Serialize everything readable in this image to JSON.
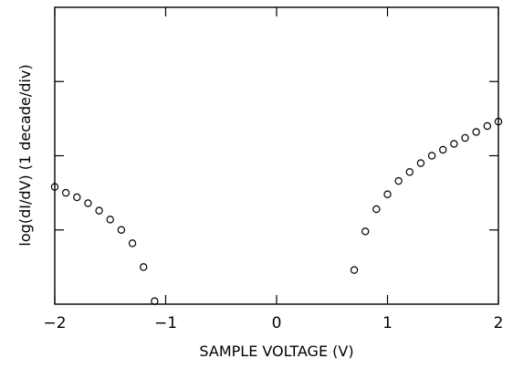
{
  "chart_data": {
    "type": "scatter",
    "title": "",
    "xlabel": "SAMPLE VOLTAGE (V)",
    "ylabel": "log(dI/dV)   (1 decade/div)",
    "xlim": [
      -2,
      2
    ],
    "ylim": [
      0,
      4
    ],
    "x_ticks": [
      -2,
      -1,
      0,
      1,
      2
    ],
    "x_tick_labels": [
      "−2",
      "−1",
      "0",
      "1",
      "2"
    ],
    "y_ticks": [
      1,
      2,
      3
    ],
    "y_tick_labels_shown": false,
    "marker": "open-circle",
    "grid": false,
    "legend": "none",
    "colors": {
      "marker": "#000000",
      "axes": "#000000",
      "background": "#ffffff"
    },
    "series": [
      {
        "x": [
          -2.0,
          -1.9,
          -1.8,
          -1.7,
          -1.6,
          -1.5,
          -1.4,
          -1.3,
          -1.2,
          -1.1
        ],
        "y": [
          1.58,
          1.5,
          1.44,
          1.36,
          1.26,
          1.14,
          1.0,
          0.82,
          0.5,
          0.04
        ]
      },
      {
        "x": [
          0.7,
          0.8,
          0.9,
          1.0,
          1.1,
          1.2,
          1.3,
          1.4,
          1.5,
          1.6,
          1.7,
          1.8,
          1.9,
          2.0
        ],
        "y": [
          0.46,
          0.98,
          1.28,
          1.48,
          1.66,
          1.78,
          1.9,
          2.0,
          2.08,
          2.16,
          2.24,
          2.32,
          2.4,
          2.46
        ]
      }
    ]
  }
}
